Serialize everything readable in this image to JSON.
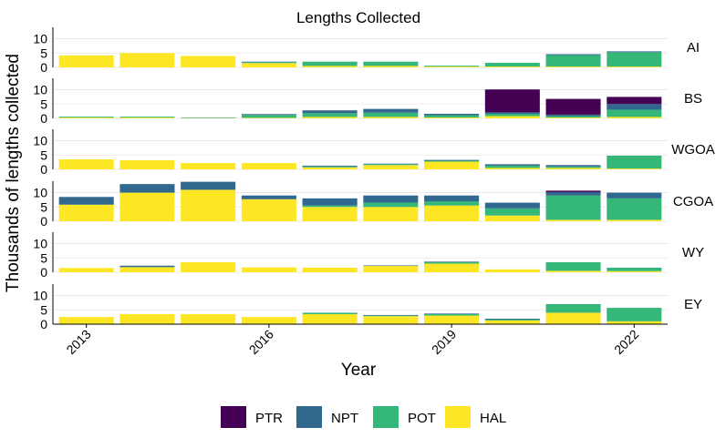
{
  "chart_data": {
    "type": "bar",
    "stacked": true,
    "title": "Lengths Collected",
    "xlabel": "Year",
    "ylabel": "Thousands of lengths collected",
    "x": [
      2013,
      2014,
      2015,
      2016,
      2017,
      2018,
      2019,
      2020,
      2021,
      2022
    ],
    "x_tick_labels": [
      "2013",
      "2016",
      "2019",
      "2022"
    ],
    "x_tick_values": [
      2013,
      2016,
      2019,
      2022
    ],
    "ylim": [
      0,
      14
    ],
    "y_ticks": [
      0,
      5,
      10
    ],
    "y_tick_labels": [
      "0",
      "5",
      "10"
    ],
    "grid": true,
    "legend_position": "bottom",
    "stack_order": [
      "HAL",
      "POT",
      "NPT",
      "PTR"
    ],
    "legend": [
      "PTR",
      "NPT",
      "POT",
      "HAL"
    ],
    "colors": {
      "PTR": "#440154",
      "NPT": "#31688E",
      "POT": "#35B779",
      "HAL": "#FDE725"
    },
    "panels": [
      {
        "name": "AI",
        "series": {
          "HAL": [
            4.2,
            5.0,
            4.0,
            1.5,
            0.5,
            0.5,
            0.3,
            0.3,
            0.3,
            0.3
          ],
          "POT": [
            0,
            0,
            0,
            0.3,
            1.5,
            1.5,
            0.3,
            1.3,
            4.0,
            5.0
          ],
          "NPT": [
            0,
            0,
            0,
            0.2,
            0,
            0,
            0,
            0,
            0.3,
            0.3
          ],
          "PTR": [
            0,
            0,
            0,
            0,
            0,
            0,
            0,
            0,
            0,
            0
          ]
        }
      },
      {
        "name": "BS",
        "series": {
          "HAL": [
            0.3,
            0.3,
            0.1,
            0.2,
            0.5,
            0.5,
            0.3,
            0.8,
            0.3,
            0.5
          ],
          "POT": [
            0.3,
            0.3,
            0.2,
            1.0,
            1.3,
            1.5,
            0.8,
            0.8,
            0.5,
            2.5
          ],
          "NPT": [
            0,
            0,
            0,
            0.3,
            1.0,
            1.3,
            0.5,
            0.5,
            0.5,
            2.0
          ],
          "PTR": [
            0,
            0,
            0,
            0,
            0,
            0,
            0,
            8.0,
            5.5,
            2.5
          ]
        }
      },
      {
        "name": "WGOA",
        "series": {
          "HAL": [
            3.5,
            3.2,
            2.2,
            2.2,
            0.7,
            1.5,
            2.7,
            0.5,
            0.5,
            0.3
          ],
          "POT": [
            0,
            0,
            0,
            0,
            0.3,
            0.3,
            0.3,
            0.8,
            0.5,
            4.5
          ],
          "NPT": [
            0,
            0,
            0,
            0,
            0.3,
            0.2,
            0.3,
            0.5,
            0.5,
            0
          ],
          "PTR": [
            0,
            0,
            0,
            0,
            0,
            0,
            0,
            0,
            0,
            0
          ]
        }
      },
      {
        "name": "CGOA",
        "series": {
          "HAL": [
            5.8,
            10.0,
            11.0,
            7.7,
            5.0,
            5.0,
            5.5,
            2.0,
            0.5,
            0.5
          ],
          "POT": [
            0,
            0,
            0,
            0,
            0.5,
            1.5,
            1.5,
            2.5,
            8.5,
            7.5
          ],
          "NPT": [
            2.7,
            3.0,
            2.8,
            1.3,
            2.5,
            2.5,
            2.0,
            2.0,
            1.2,
            2.0
          ],
          "PTR": [
            0,
            0,
            0,
            0,
            0,
            0,
            0,
            0,
            0.5,
            0
          ]
        }
      },
      {
        "name": "WY",
        "series": {
          "HAL": [
            1.5,
            1.8,
            3.5,
            1.7,
            1.6,
            2.2,
            3.0,
            1.0,
            0.5,
            0.4
          ],
          "POT": [
            0,
            0,
            0,
            0,
            0,
            0,
            0.5,
            0,
            3.0,
            1.2
          ],
          "NPT": [
            0,
            0.5,
            0,
            0,
            0,
            0.2,
            0.2,
            0,
            0,
            0
          ],
          "PTR": [
            0,
            0,
            0,
            0,
            0,
            0,
            0,
            0,
            0,
            0
          ]
        }
      },
      {
        "name": "EY",
        "series": {
          "HAL": [
            2.5,
            3.5,
            3.5,
            2.5,
            3.5,
            2.8,
            3.0,
            1.3,
            4.0,
            1.0
          ],
          "POT": [
            0,
            0,
            0,
            0,
            0.5,
            0.2,
            0.5,
            0.3,
            3.0,
            4.7
          ],
          "NPT": [
            0,
            0,
            0,
            0,
            0,
            0.2,
            0.2,
            0.3,
            0,
            0
          ],
          "PTR": [
            0,
            0,
            0,
            0,
            0,
            0,
            0,
            0,
            0,
            0
          ]
        }
      }
    ]
  }
}
